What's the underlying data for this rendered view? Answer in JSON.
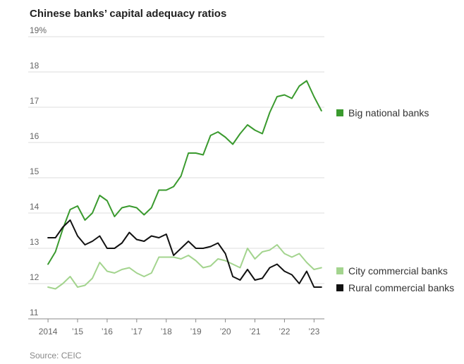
{
  "chart_data": {
    "type": "line",
    "title": "Chinese banks’ capital adequacy ratios",
    "source": "Source: CEIC",
    "ylim": [
      11,
      19
    ],
    "y_ticks": [
      "19%",
      "18",
      "17",
      "16",
      "15",
      "14",
      "13",
      "12",
      "11"
    ],
    "y_tick_values": [
      19,
      18,
      17,
      16,
      15,
      14,
      13,
      12,
      11
    ],
    "x_tick_labels": [
      "2014",
      "’15",
      "’16",
      "’17",
      "’18",
      "’19",
      "’20",
      "’21",
      "’22",
      "’23"
    ],
    "x_tick_values": [
      2014,
      2015,
      2016,
      2017,
      2018,
      2019,
      2020,
      2021,
      2022,
      2023
    ],
    "xlim": [
      2013.95,
      2023.35
    ],
    "grid": true,
    "legend_placement": "right, next to line ends",
    "x": [
      2014.0,
      2014.25,
      2014.5,
      2014.75,
      2015.0,
      2015.25,
      2015.5,
      2015.75,
      2016.0,
      2016.25,
      2016.5,
      2016.75,
      2017.0,
      2017.25,
      2017.5,
      2017.75,
      2018.0,
      2018.25,
      2018.5,
      2018.75,
      2019.0,
      2019.25,
      2019.5,
      2019.75,
      2020.0,
      2020.25,
      2020.5,
      2020.75,
      2021.0,
      2021.25,
      2021.5,
      2021.75,
      2022.0,
      2022.25,
      2022.5,
      2022.75,
      2023.0,
      2023.25
    ],
    "series": [
      {
        "name": "Big national banks",
        "color": "#3a9a2e",
        "values": [
          12.55,
          12.9,
          13.55,
          14.1,
          14.2,
          13.8,
          14.0,
          14.5,
          14.35,
          13.9,
          14.15,
          14.2,
          14.15,
          13.95,
          14.15,
          14.65,
          14.65,
          14.75,
          15.05,
          15.7,
          15.7,
          15.65,
          16.2,
          16.3,
          16.15,
          15.95,
          16.25,
          16.5,
          16.35,
          16.25,
          16.85,
          17.3,
          17.35,
          17.25,
          17.6,
          17.75,
          17.3,
          16.9
        ]
      },
      {
        "name": "City commercial banks",
        "color": "#a3d48e",
        "values": [
          11.9,
          11.85,
          12.0,
          12.2,
          11.9,
          11.95,
          12.15,
          12.6,
          12.35,
          12.3,
          12.4,
          12.45,
          12.3,
          12.2,
          12.3,
          12.75,
          12.75,
          12.75,
          12.7,
          12.8,
          12.65,
          12.45,
          12.5,
          12.7,
          12.65,
          12.55,
          12.45,
          13.0,
          12.7,
          12.9,
          12.95,
          13.1,
          12.85,
          12.75,
          12.85,
          12.6,
          12.4,
          12.45
        ]
      },
      {
        "name": "Rural commercial banks",
        "color": "#111111",
        "values": [
          13.3,
          13.3,
          13.6,
          13.8,
          13.35,
          13.1,
          13.2,
          13.35,
          13.0,
          13.0,
          13.15,
          13.45,
          13.25,
          13.2,
          13.35,
          13.3,
          13.4,
          12.8,
          13.0,
          13.2,
          13.0,
          13.0,
          13.05,
          13.15,
          12.85,
          12.2,
          12.1,
          12.4,
          12.1,
          12.15,
          12.45,
          12.55,
          12.35,
          12.25,
          12.0,
          12.35,
          11.9,
          11.9
        ]
      }
    ]
  }
}
